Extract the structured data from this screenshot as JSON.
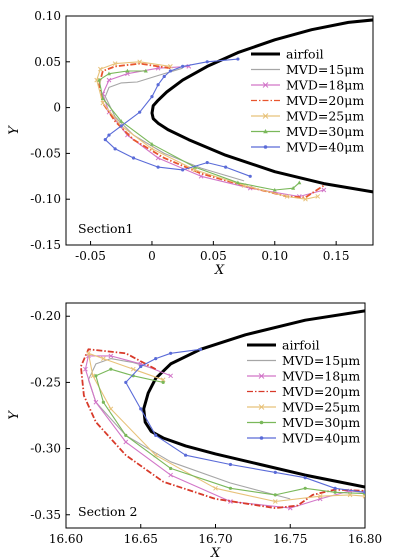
{
  "chart_data": [
    {
      "type": "line",
      "panel_label": "Section1",
      "xlabel": "X",
      "ylabel": "Y",
      "xlim": [
        -0.07,
        0.18
      ],
      "ylim": [
        -0.15,
        0.1
      ],
      "x_ticks": [
        "-0.05",
        "0",
        "0.05",
        "0.10",
        "0.15"
      ],
      "x_tick_values": [
        -0.05,
        0,
        0.05,
        0.1,
        0.15
      ],
      "y_ticks": [
        "0.10",
        "0.05",
        "0",
        "-0.05",
        "-0.10",
        "-0.15"
      ],
      "y_tick_values": [
        0.1,
        0.05,
        0,
        -0.05,
        -0.1,
        -0.15
      ],
      "legend_position": "right",
      "series": [
        {
          "name": "airfoil",
          "color": "#000000",
          "marker": "none",
          "x": [
            0.19,
            0.16,
            0.13,
            0.1,
            0.07,
            0.045,
            0.025,
            0.012,
            0.005,
            0.001,
            0.0,
            0.001,
            0.005,
            0.013,
            0.03,
            0.06,
            0.1,
            0.14,
            0.18
          ],
          "y": [
            0.097,
            0.093,
            0.085,
            0.074,
            0.06,
            0.045,
            0.03,
            0.017,
            0.008,
            0.002,
            -0.006,
            -0.012,
            -0.017,
            -0.024,
            -0.035,
            -0.052,
            -0.07,
            -0.083,
            -0.092
          ]
        },
        {
          "name": "MVD=15μm",
          "color": "#a6a6a6",
          "marker": "none",
          "x": [
            0.025,
            0.005,
            -0.012,
            -0.025,
            -0.035,
            -0.038,
            -0.03,
            -0.015,
            0.01,
            0.04,
            0.075
          ],
          "y": [
            0.043,
            0.035,
            0.028,
            0.027,
            0.022,
            0.012,
            -0.01,
            -0.03,
            -0.05,
            -0.066,
            -0.08
          ]
        },
        {
          "name": "MVD=18μm",
          "color": "#d276c8",
          "marker": "cross",
          "x": [
            0.03,
            0.005,
            -0.02,
            -0.035,
            -0.04,
            -0.035,
            -0.02,
            0.005,
            0.04,
            0.08,
            0.12,
            0.14
          ],
          "y": [
            0.045,
            0.043,
            0.037,
            0.03,
            0.015,
            -0.005,
            -0.03,
            -0.055,
            -0.075,
            -0.088,
            -0.097,
            -0.09
          ]
        },
        {
          "name": "MVD=20μm",
          "color": "#e8552e",
          "marker": "none",
          "dash": "dashdot",
          "x": [
            0.015,
            -0.01,
            -0.03,
            -0.04,
            -0.043,
            -0.04,
            -0.03,
            -0.015,
            0.01,
            0.04,
            0.08,
            0.11,
            0.125,
            0.14
          ],
          "y": [
            0.043,
            0.048,
            0.045,
            0.04,
            0.025,
            0.005,
            -0.015,
            -0.035,
            -0.055,
            -0.072,
            -0.087,
            -0.097,
            -0.098,
            -0.085
          ]
        },
        {
          "name": "MVD=25μm",
          "color": "#e8c27a",
          "marker": "cross",
          "x": [
            0.015,
            -0.01,
            -0.03,
            -0.042,
            -0.045,
            -0.04,
            -0.025,
            0.0,
            0.035,
            0.075,
            0.11,
            0.125,
            0.135
          ],
          "y": [
            0.045,
            0.05,
            0.048,
            0.042,
            0.03,
            0.005,
            -0.02,
            -0.045,
            -0.068,
            -0.085,
            -0.097,
            -0.1,
            -0.097
          ]
        },
        {
          "name": "MVD=30μm",
          "color": "#7ab85a",
          "marker": "triangle",
          "x": [
            -0.005,
            -0.02,
            -0.035,
            -0.043,
            -0.04,
            -0.025,
            0.0,
            0.035,
            0.07,
            0.1,
            0.115,
            0.12
          ],
          "y": [
            0.04,
            0.04,
            0.037,
            0.03,
            0.01,
            -0.015,
            -0.04,
            -0.065,
            -0.082,
            -0.09,
            -0.088,
            -0.082
          ]
        },
        {
          "name": "MVD=40μm",
          "color": "#5a6bd8",
          "marker": "dot",
          "x": [
            0.07,
            0.045,
            0.025,
            0.015,
            0.01,
            0.005,
            0.0,
            -0.01,
            -0.025,
            -0.035,
            -0.038,
            -0.03,
            -0.015,
            0.005,
            0.025,
            0.045,
            0.06,
            0.08
          ],
          "y": [
            0.053,
            0.05,
            0.045,
            0.04,
            0.034,
            0.025,
            0.012,
            -0.005,
            -0.02,
            -0.03,
            -0.035,
            -0.045,
            -0.055,
            -0.065,
            -0.068,
            -0.06,
            -0.065,
            -0.075
          ]
        }
      ]
    },
    {
      "type": "line",
      "panel_label": "Section 2",
      "xlabel": "X",
      "ylabel": "Y",
      "xlim": [
        16.6,
        16.8
      ],
      "ylim": [
        -0.36,
        -0.19
      ],
      "x_ticks": [
        "16.60",
        "16.65",
        "16.70",
        "16.75",
        "16.80"
      ],
      "x_tick_values": [
        16.6,
        16.65,
        16.7,
        16.75,
        16.8
      ],
      "y_ticks": [
        "-0.20",
        "-0.25",
        "-0.30",
        "-0.35"
      ],
      "y_tick_values": [
        -0.2,
        -0.25,
        -0.3,
        -0.35
      ],
      "legend_position": "right",
      "series": [
        {
          "name": "airfoil",
          "color": "#000000",
          "marker": "none",
          "x": [
            16.8,
            16.76,
            16.72,
            16.69,
            16.67,
            16.66,
            16.655,
            16.652,
            16.653,
            16.657,
            16.665,
            16.68,
            16.7,
            16.73,
            16.76,
            16.8
          ],
          "y": [
            -0.196,
            -0.203,
            -0.214,
            -0.225,
            -0.236,
            -0.247,
            -0.258,
            -0.27,
            -0.28,
            -0.287,
            -0.292,
            -0.298,
            -0.304,
            -0.312,
            -0.32,
            -0.329
          ]
        },
        {
          "name": "MVD=15μm",
          "color": "#a6a6a6",
          "marker": "none",
          "x": [
            16.66,
            16.645,
            16.63,
            16.62,
            16.615,
            16.62,
            16.64,
            16.67,
            16.71,
            16.75
          ],
          "y": [
            -0.24,
            -0.235,
            -0.232,
            -0.236,
            -0.248,
            -0.265,
            -0.29,
            -0.31,
            -0.326,
            -0.338
          ]
        },
        {
          "name": "MVD=18μm",
          "color": "#d276c8",
          "marker": "cross",
          "x": [
            16.67,
            16.65,
            16.63,
            16.615,
            16.613,
            16.62,
            16.64,
            16.67,
            16.71,
            16.75,
            16.77,
            16.79,
            16.8
          ],
          "y": [
            -0.245,
            -0.236,
            -0.23,
            -0.23,
            -0.24,
            -0.265,
            -0.295,
            -0.32,
            -0.34,
            -0.345,
            -0.338,
            -0.332,
            -0.333
          ]
        },
        {
          "name": "MVD=20μm",
          "color": "#d83a2a",
          "marker": "none",
          "dash": "dashdot",
          "x": [
            16.66,
            16.64,
            16.615,
            16.61,
            16.612,
            16.62,
            16.64,
            16.665,
            16.7,
            16.74,
            16.755,
            16.765,
            16.78,
            16.8
          ],
          "y": [
            -0.24,
            -0.228,
            -0.225,
            -0.238,
            -0.26,
            -0.28,
            -0.305,
            -0.325,
            -0.338,
            -0.345,
            -0.343,
            -0.335,
            -0.331,
            -0.332
          ]
        },
        {
          "name": "MVD=25μm",
          "color": "#e8c27a",
          "marker": "cross",
          "x": [
            16.665,
            16.645,
            16.625,
            16.615,
            16.618,
            16.63,
            16.66,
            16.7,
            16.74,
            16.77,
            16.79,
            16.8
          ],
          "y": [
            -0.248,
            -0.24,
            -0.232,
            -0.228,
            -0.245,
            -0.27,
            -0.305,
            -0.33,
            -0.34,
            -0.336,
            -0.335,
            -0.336
          ]
        },
        {
          "name": "MVD=30μm",
          "color": "#7ab85a",
          "marker": "dot",
          "x": [
            16.665,
            16.645,
            16.63,
            16.62,
            16.625,
            16.64,
            16.67,
            16.71,
            16.74,
            16.76,
            16.78,
            16.8
          ],
          "y": [
            -0.25,
            -0.245,
            -0.24,
            -0.245,
            -0.265,
            -0.29,
            -0.315,
            -0.33,
            -0.335,
            -0.33,
            -0.333,
            -0.334
          ]
        },
        {
          "name": "MVD=40μm",
          "color": "#5a6bd8",
          "marker": "dot",
          "x": [
            16.69,
            16.67,
            16.66,
            16.65,
            16.64,
            16.65,
            16.66,
            16.68,
            16.71,
            16.74,
            16.76,
            16.78,
            16.8
          ],
          "y": [
            -0.225,
            -0.228,
            -0.232,
            -0.238,
            -0.25,
            -0.27,
            -0.29,
            -0.305,
            -0.312,
            -0.318,
            -0.322,
            -0.33,
            -0.333
          ]
        }
      ]
    }
  ]
}
